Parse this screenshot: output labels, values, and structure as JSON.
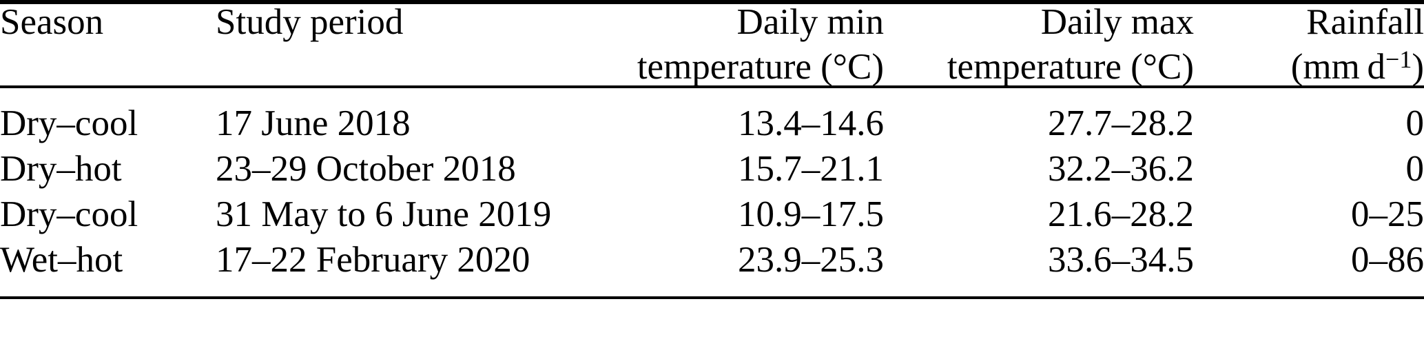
{
  "colors": {
    "text": "#000000",
    "background": "#ffffff",
    "rule": "#000000"
  },
  "table": {
    "header": {
      "season": "Season",
      "study_period": "Study period",
      "daily_min_line1": "Daily min",
      "daily_min_line2": "temperature (°C)",
      "daily_max_line1": "Daily max",
      "daily_max_line2": "temperature (°C)",
      "rainfall_line1": "Rainfall",
      "rainfall_unit_open": "(mm d",
      "rainfall_unit_sup": "−1",
      "rainfall_unit_close": ")"
    },
    "rows": [
      {
        "season": "Dry–cool",
        "study_period": "17 June 2018",
        "daily_min": "13.4–14.6",
        "daily_max": "27.7–28.2",
        "rainfall": "0"
      },
      {
        "season": "Dry–hot",
        "study_period": "23–29 October 2018",
        "daily_min": "15.7–21.1",
        "daily_max": "32.2–36.2",
        "rainfall": "0"
      },
      {
        "season": "Dry–cool",
        "study_period": "31 May to 6 June 2019",
        "daily_min": "10.9–17.5",
        "daily_max": "21.6–28.2",
        "rainfall": "0–25"
      },
      {
        "season": "Wet–hot",
        "study_period": "17–22 February 2020",
        "daily_min": "23.9–25.3",
        "daily_max": "33.6–34.5",
        "rainfall": "0–86"
      }
    ]
  }
}
